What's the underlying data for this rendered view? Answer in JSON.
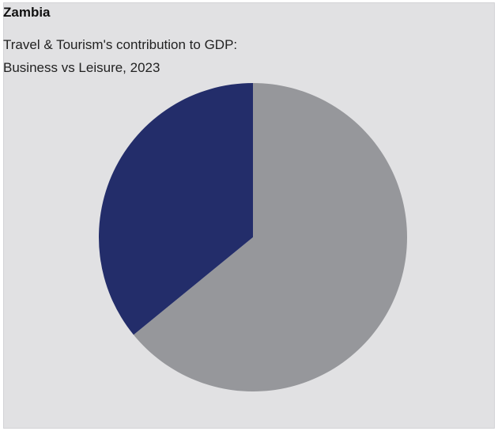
{
  "header": {
    "title": "Zambia",
    "subtitle_line1": "Travel & Tourism's contribution to GDP:",
    "subtitle_line2": "Business vs Leisure, 2023"
  },
  "chart_data": {
    "type": "pie",
    "title": "Zambia",
    "subtitle": "Travel & Tourism's contribution to GDP: Business vs Leisure, 2023",
    "legend": "none",
    "start": "12 o'clock, clockwise",
    "slices": [
      {
        "value": 64.1,
        "color": "#96979b"
      },
      {
        "value": 35.9,
        "color": "#232d6a"
      }
    ]
  }
}
